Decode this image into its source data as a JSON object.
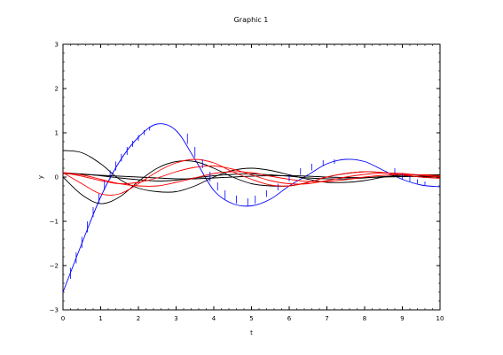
{
  "chart_data": {
    "type": "line",
    "title": "Graphic 1",
    "xlabel": "t",
    "ylabel": "y",
    "xlim": [
      0,
      10
    ],
    "ylim": [
      -3,
      3
    ],
    "xticks": [
      "0",
      "1",
      "2",
      "3",
      "4",
      "5",
      "6",
      "7",
      "8",
      "9",
      "10"
    ],
    "yticks": [
      "−3",
      "−2",
      "−1",
      "0",
      "1",
      "2",
      "3"
    ],
    "grid": false,
    "legend": "none",
    "series": [
      {
        "color": "#0000ff",
        "x": [
          0,
          0.5,
          1,
          1.5,
          2,
          2.5,
          3,
          3.5,
          4,
          4.5,
          5,
          5.5,
          6,
          6.5,
          7,
          7.5,
          8,
          8.5,
          9,
          9.5,
          10
        ],
        "y": [
          -2.6,
          -1.5,
          -0.45,
          0.35,
          0.9,
          1.2,
          1.05,
          0.4,
          -0.3,
          -0.6,
          -0.65,
          -0.5,
          -0.2,
          0.05,
          0.3,
          0.4,
          0.35,
          0.15,
          -0.05,
          -0.18,
          -0.22
        ]
      },
      {
        "color": "#000000",
        "x": [
          0,
          0.5,
          1,
          1.5,
          2,
          2.5,
          3,
          3.5,
          4,
          4.5,
          5,
          5.5,
          6,
          6.5,
          7,
          7.5,
          8,
          8.5,
          9,
          9.5,
          10
        ],
        "y": [
          0.6,
          0.55,
          0.3,
          -0.05,
          -0.25,
          -0.33,
          -0.33,
          -0.2,
          0,
          0.15,
          0.2,
          0.15,
          0.05,
          -0.05,
          -0.12,
          -0.12,
          -0.08,
          0,
          0.05,
          0.05,
          0.05
        ]
      },
      {
        "color": "#000000",
        "x": [
          0,
          0.5,
          1,
          1.5,
          2,
          2.5,
          3,
          3.5,
          4,
          4.5,
          5,
          5.5,
          6,
          6.5,
          7,
          7.5,
          8,
          8.5,
          9,
          9.5,
          10
        ],
        "y": [
          0,
          -0.4,
          -0.6,
          -0.45,
          -0.1,
          0.2,
          0.35,
          0.35,
          0.2,
          0,
          -0.15,
          -0.2,
          -0.2,
          -0.12,
          0,
          0.08,
          0.12,
          0.1,
          0.05,
          0,
          -0.02
        ]
      },
      {
        "color": "#000000",
        "x": [
          0,
          0.5,
          1,
          1.5,
          2,
          2.5,
          3,
          3.5,
          4,
          4.5,
          5,
          5.5,
          6,
          6.5,
          7,
          7.5,
          8,
          8.5,
          9,
          9.5,
          10
        ],
        "y": [
          0.1,
          0.07,
          0.03,
          -0.02,
          -0.06,
          -0.09,
          -0.07,
          -0.02,
          0.03,
          0.06,
          0.07,
          0.05,
          0.02,
          -0.02,
          -0.04,
          -0.04,
          -0.02,
          0.01,
          0.02,
          0.02,
          0.02
        ]
      },
      {
        "color": "#000000",
        "x": [
          0,
          0.5,
          1,
          1.5,
          2,
          2.5,
          3,
          3.5,
          4,
          4.5,
          5,
          5.5,
          6,
          6.5,
          7,
          7.5,
          8,
          8.5,
          9,
          9.5,
          10
        ],
        "y": [
          0.08,
          0.06,
          0.04,
          0.02,
          0,
          -0.02,
          -0.04,
          -0.04,
          -0.02,
          0,
          0.02,
          0.03,
          0.03,
          0.02,
          0,
          -0.01,
          -0.01,
          0,
          0.01,
          0.01,
          0.01
        ]
      },
      {
        "color": "#ff0000",
        "x": [
          0,
          0.5,
          1,
          1.5,
          2,
          2.5,
          3,
          3.5,
          4,
          4.5,
          5,
          5.5,
          6,
          6.5,
          7,
          7.5,
          8,
          8.5,
          9,
          9.5,
          10
        ],
        "y": [
          0.1,
          -0.15,
          -0.38,
          -0.38,
          -0.15,
          0.12,
          0.32,
          0.4,
          0.32,
          0.12,
          -0.05,
          -0.18,
          -0.2,
          -0.12,
          0,
          0.08,
          0.12,
          0.1,
          0.05,
          0,
          -0.03
        ]
      },
      {
        "color": "#ff0000",
        "x": [
          0,
          0.5,
          1,
          1.5,
          2,
          2.5,
          3,
          3.5,
          4,
          4.5,
          5,
          5.5,
          6,
          6.5,
          7,
          7.5,
          8,
          8.5,
          9,
          9.5,
          10
        ],
        "y": [
          0.1,
          0.02,
          -0.08,
          -0.15,
          -0.12,
          -0.02,
          0.12,
          0.22,
          0.25,
          0.18,
          0.05,
          -0.08,
          -0.15,
          -0.15,
          -0.08,
          0,
          0.06,
          0.09,
          0.08,
          0.04,
          0
        ]
      },
      {
        "color": "#ff0000",
        "x": [
          0,
          0.5,
          1,
          1.5,
          2,
          2.5,
          3,
          3.5,
          4,
          4.5,
          5,
          5.5,
          6,
          6.5,
          7,
          7.5,
          8,
          8.5,
          9,
          9.5,
          10
        ],
        "y": [
          0.1,
          0.05,
          -0.05,
          -0.15,
          -0.2,
          -0.2,
          -0.12,
          -0.02,
          0.08,
          0.12,
          0.1,
          0.02,
          -0.05,
          -0.1,
          -0.1,
          -0.06,
          0,
          0.04,
          0.06,
          0.05,
          0.03
        ]
      }
    ],
    "stems": {
      "color": "#0000ff",
      "x": [
        0.2,
        0.35,
        0.5,
        0.65,
        0.8,
        0.95,
        1.1,
        1.25,
        1.4,
        1.55,
        1.7,
        1.85,
        2.0,
        2.15,
        2.3,
        3.3,
        3.5,
        3.7,
        3.9,
        4.1,
        4.3,
        4.6,
        4.9,
        5.1,
        5.4,
        5.7,
        6.0,
        6.3,
        6.6,
        6.9,
        7.2,
        8.8,
        9.0,
        9.2,
        9.4,
        9.6
      ],
      "y0": [
        -2.3,
        -1.95,
        -1.6,
        -1.25,
        -0.9,
        -0.6,
        -0.3,
        -0.05,
        0.15,
        0.35,
        0.5,
        0.68,
        0.82,
        0.95,
        1.05,
        0.75,
        0.45,
        0.2,
        -0.1,
        -0.3,
        -0.5,
        -0.6,
        -0.65,
        -0.6,
        -0.45,
        -0.3,
        -0.1,
        0.05,
        0.15,
        0.25,
        0.3,
        0.08,
        -0.05,
        -0.1,
        -0.15,
        -0.18
      ],
      "y1": [
        -2.05,
        -1.7,
        -1.35,
        -1.0,
        -0.68,
        -0.38,
        -0.08,
        0.15,
        0.35,
        0.52,
        0.68,
        0.82,
        0.95,
        1.06,
        1.14,
        0.98,
        0.68,
        0.4,
        0.12,
        -0.12,
        -0.3,
        -0.42,
        -0.48,
        -0.42,
        -0.3,
        -0.15,
        0.05,
        0.2,
        0.3,
        0.38,
        0.4,
        0.2,
        0.08,
        0.02,
        -0.05,
        -0.1
      ]
    }
  }
}
